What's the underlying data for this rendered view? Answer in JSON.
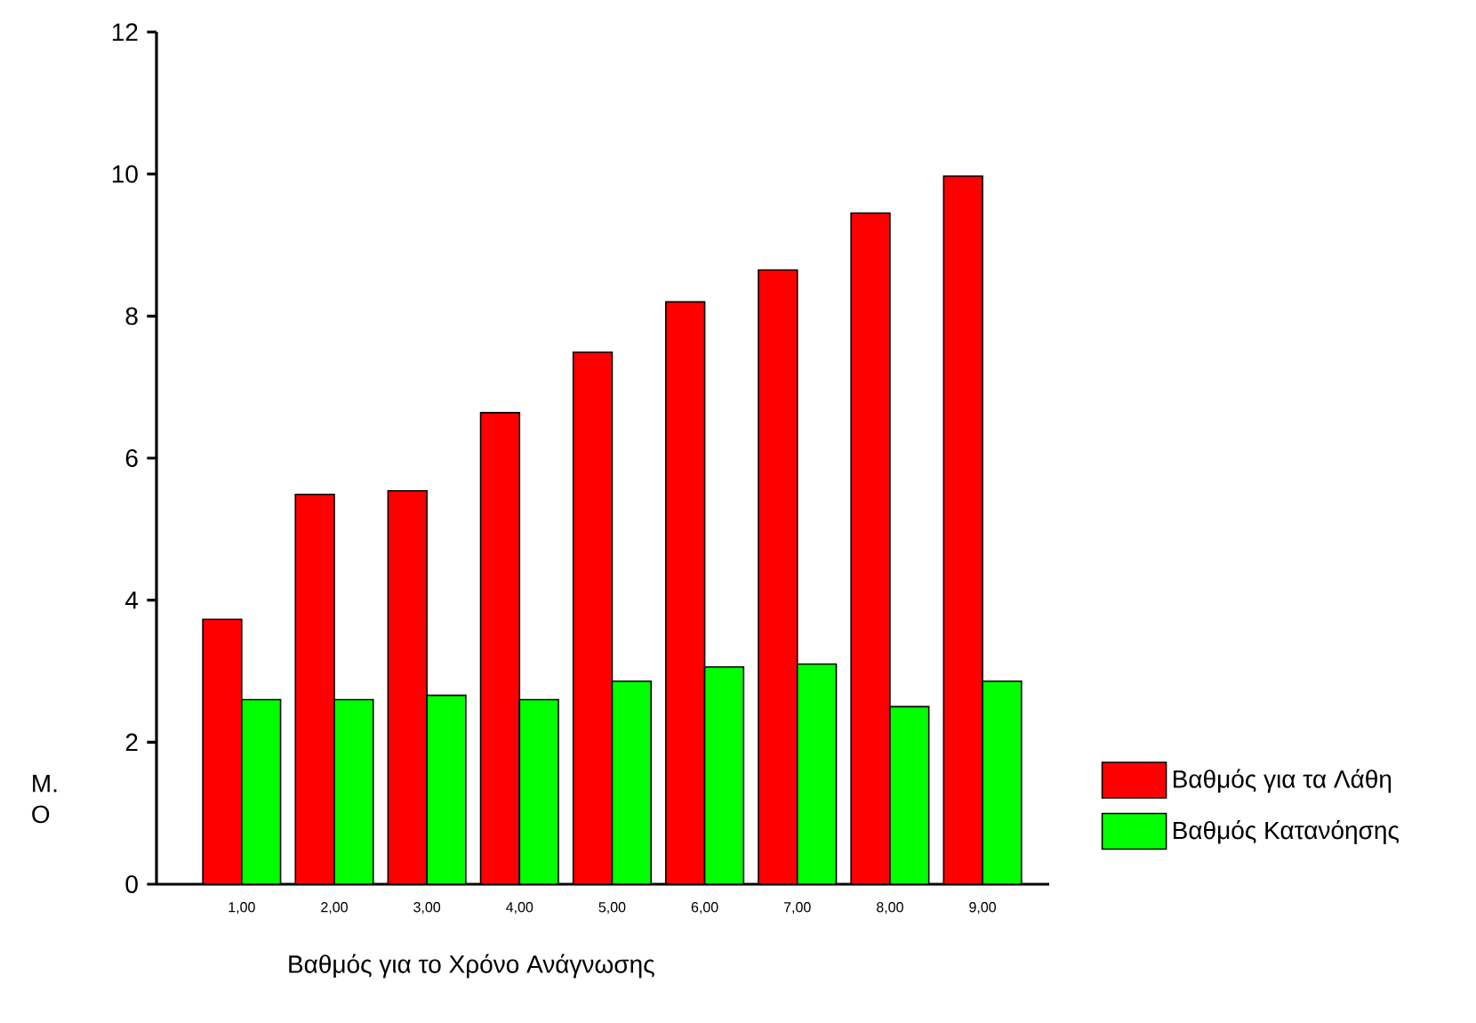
{
  "chart_data": {
    "type": "bar",
    "xlabel": "Βαθμός για το Χρόνο Ανάγνωσης",
    "ylabel": "Μ. Ο",
    "categories": [
      "1,00",
      "2,00",
      "3,00",
      "4,00",
      "5,00",
      "6,00",
      "7,00",
      "8,00",
      "9,00"
    ],
    "series": [
      {
        "name": "Βαθμός για τα Λάθη",
        "color": "#ff0000",
        "values": [
          3.73,
          5.49,
          5.54,
          6.64,
          7.49,
          8.2,
          8.65,
          9.45,
          9.97
        ]
      },
      {
        "name": "Βαθμός Κατανόησης",
        "color": "#00ff00",
        "values": [
          2.6,
          2.6,
          2.66,
          2.6,
          2.86,
          3.06,
          3.1,
          2.5,
          2.86
        ]
      }
    ],
    "ylim": [
      0,
      12
    ],
    "yticks": [
      0,
      2,
      4,
      6,
      8,
      10,
      12
    ],
    "grid": false,
    "legend": "right"
  }
}
